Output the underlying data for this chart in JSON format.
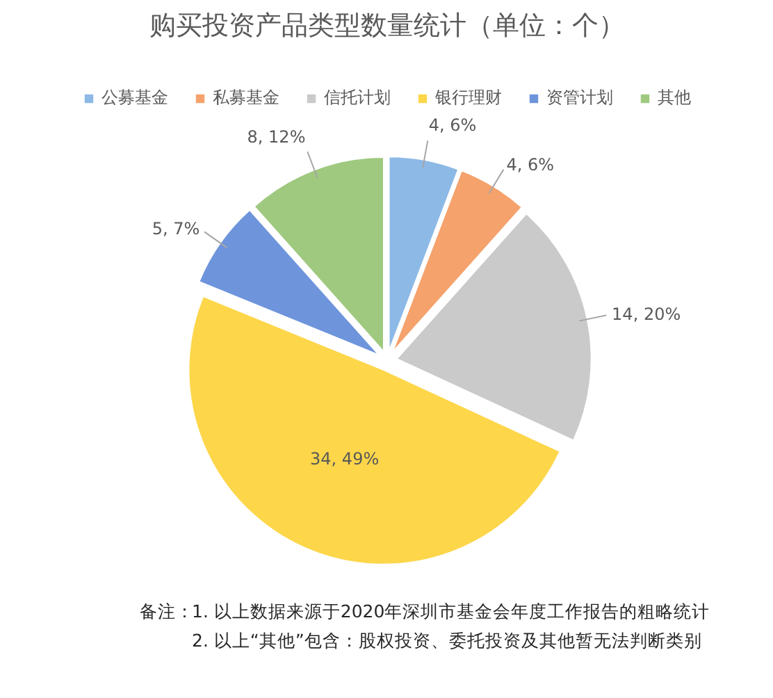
{
  "chart_data": {
    "type": "pie",
    "title": "购买投资产品类型数量统计（单位：个）",
    "categories": [
      "公募基金",
      "私募基金",
      "信托计划",
      "银行理财",
      "资管计划",
      "其他"
    ],
    "values": [
      4,
      4,
      14,
      34,
      5,
      8
    ],
    "colors": [
      "#8db9e6",
      "#f5a26c",
      "#cacaca",
      "#fdd64a",
      "#6e94dc",
      "#9fc97f"
    ],
    "value_labels": [
      "4, 6%",
      "4, 6%",
      "14, 20%",
      "34, 49%",
      "5, 7%",
      "8, 12%"
    ],
    "legend": "top",
    "annotations": [
      "备注：",
      "1. 以上数据来源于2020年深圳市基金会年度工作报告的粗略统计",
      "2. 以上“其他”包含：股权投资、委托投资及其他暂无法判断类别"
    ]
  }
}
